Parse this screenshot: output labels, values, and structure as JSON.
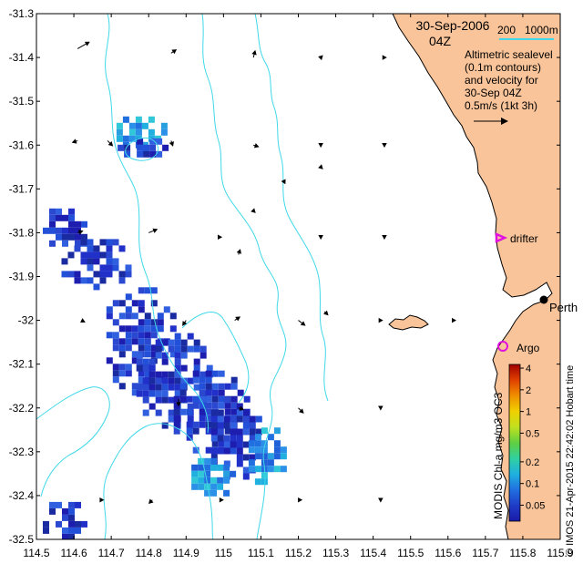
{
  "chart_data": {
    "type": "map",
    "title": "30-Sep-2006",
    "subtitle": "04Z",
    "xlim": [
      114.5,
      115.9
    ],
    "ylim": [
      -32.5,
      -31.3
    ],
    "x_ticks": [
      114.5,
      114.6,
      114.7,
      114.8,
      114.9,
      115,
      115.1,
      115.2,
      115.3,
      115.4,
      115.5,
      115.6,
      115.7,
      115.8,
      115.9
    ],
    "x_tick_labels": [
      "114.5",
      "114.6",
      "114.7",
      "114.8",
      "114.9",
      "115",
      "115.1",
      "115.2",
      "115.3",
      "115.4",
      "115.5",
      "115.6",
      "115.7",
      "115.8",
      "115.9"
    ],
    "y_ticks": [
      -31.3,
      -31.4,
      -31.5,
      -31.6,
      -31.7,
      -31.8,
      -31.9,
      -32,
      -32.1,
      -32.2,
      -32.3,
      -32.4,
      -32.5
    ],
    "y_tick_labels": [
      "-31.3",
      "-31.4",
      "-31.5",
      "-31.6",
      "-31.7",
      "-31.8",
      "-31.9",
      "-32",
      "-32.1",
      "-32.2",
      "-32.3",
      "-32.4",
      "-32.5"
    ],
    "bathymetry_legend": {
      "label_200": "200",
      "label_1000": "1000m"
    },
    "description_lines": [
      "Altimetric sealevel",
      "(0.1m contours)",
      "and velocity for",
      "30-Sep 04Z"
    ],
    "scale_label": "0.5m/s (1kt 3h)",
    "places": [
      {
        "name": "Perth",
        "lon": 115.86,
        "lat": -31.95
      },
      {
        "name": "drifter",
        "lon": 115.75,
        "lat": -31.81
      },
      {
        "name": "Argo",
        "lon": 115.74,
        "lat": -32.08
      }
    ],
    "colorbar": {
      "label": "MODIS Chl-a mg/m3 OC3",
      "tick_labels": [
        "4",
        "2",
        "1",
        "0.5",
        "0.2",
        "0.1",
        "0.05"
      ],
      "tick_values": [
        4,
        2,
        1,
        0.5,
        0.2,
        0.1,
        0.05
      ],
      "range": [
        0.03,
        4.5
      ],
      "colors": [
        "#1a1aa6",
        "#1f3cc8",
        "#2070e0",
        "#20b0e0",
        "#30d0a0",
        "#60d040",
        "#c0e020",
        "#f0d000",
        "#f09000",
        "#e04000",
        "#a00000"
      ]
    },
    "credit": "© IMOS 21-Apr-2015 22:42:02 Hobart time",
    "land_color": "#f9c49a",
    "contour_color": "#40d8e8",
    "chl_patches": [
      {
        "lon": 114.68,
        "lat": -31.52,
        "w": 0.17,
        "h": 0.09,
        "level": "mid"
      },
      {
        "lon": 114.7,
        "lat": -31.57,
        "w": 0.14,
        "h": 0.06,
        "level": "low"
      },
      {
        "lon": 114.5,
        "lat": -31.73,
        "w": 0.15,
        "h": 0.1,
        "level": "low"
      },
      {
        "lon": 114.55,
        "lat": -31.8,
        "w": 0.2,
        "h": 0.12,
        "level": "low"
      },
      {
        "lon": 114.67,
        "lat": -31.91,
        "w": 0.2,
        "h": 0.25,
        "level": "low"
      },
      {
        "lon": 114.75,
        "lat": -32.0,
        "w": 0.22,
        "h": 0.25,
        "level": "low"
      },
      {
        "lon": 114.85,
        "lat": -32.1,
        "w": 0.22,
        "h": 0.2,
        "level": "low"
      },
      {
        "lon": 114.95,
        "lat": -32.16,
        "w": 0.15,
        "h": 0.2,
        "level": "low"
      },
      {
        "lon": 115.05,
        "lat": -32.23,
        "w": 0.12,
        "h": 0.15,
        "level": "mid"
      },
      {
        "lon": 114.88,
        "lat": -32.3,
        "w": 0.15,
        "h": 0.1,
        "level": "mid"
      },
      {
        "lon": 114.5,
        "lat": -32.4,
        "w": 0.13,
        "h": 0.1,
        "level": "low"
      }
    ],
    "velocity_vectors": [
      {
        "lon": 114.61,
        "lat": -31.38,
        "dx": 0.7,
        "dy": -0.4
      },
      {
        "lon": 114.86,
        "lat": -31.39,
        "dx": 0.3,
        "dy": -0.2
      },
      {
        "lon": 115.08,
        "lat": -31.4,
        "dx": 0.1,
        "dy": -0.4
      },
      {
        "lon": 115.26,
        "lat": -31.4,
        "dx": 0.1,
        "dy": -0.1
      },
      {
        "lon": 115.43,
        "lat": -31.4,
        "dx": 0.1,
        "dy": 0.0
      },
      {
        "lon": 114.61,
        "lat": -31.59,
        "dx": -0.3,
        "dy": 0.1
      },
      {
        "lon": 114.69,
        "lat": -31.59,
        "dx": 0.3,
        "dy": 0.3
      },
      {
        "lon": 114.86,
        "lat": -31.59,
        "dx": 0.1,
        "dy": 0.3
      },
      {
        "lon": 115.08,
        "lat": -31.6,
        "dx": 0.3,
        "dy": 0.1
      },
      {
        "lon": 115.26,
        "lat": -31.6,
        "dx": 0.0,
        "dy": 0.1
      },
      {
        "lon": 115.43,
        "lat": -31.6,
        "dx": 0.0,
        "dy": 0.1
      },
      {
        "lon": 115.26,
        "lat": -31.65,
        "dx": 0.1,
        "dy": 0.1
      },
      {
        "lon": 115.16,
        "lat": -31.68,
        "dx": 0.1,
        "dy": 0.2
      },
      {
        "lon": 115.08,
        "lat": -31.75,
        "dx": 0.1,
        "dy": 0.1
      },
      {
        "lon": 114.99,
        "lat": -31.81,
        "dx": 0.1,
        "dy": 0.0
      },
      {
        "lon": 114.8,
        "lat": -31.8,
        "dx": 0.5,
        "dy": -0.2
      },
      {
        "lon": 114.61,
        "lat": -31.8,
        "dx": 0.3,
        "dy": -0.1
      },
      {
        "lon": 115.04,
        "lat": -31.85,
        "dx": 0.1,
        "dy": -0.3
      },
      {
        "lon": 115.26,
        "lat": -31.81,
        "dx": 0.0,
        "dy": 0.1
      },
      {
        "lon": 115.43,
        "lat": -31.81,
        "dx": 0.0,
        "dy": 0.1
      },
      {
        "lon": 114.62,
        "lat": -32.0,
        "dx": 0.2,
        "dy": 0.1
      },
      {
        "lon": 114.9,
        "lat": -32.0,
        "dx": -0.2,
        "dy": 0.3
      },
      {
        "lon": 115.03,
        "lat": -32.0,
        "dx": 0.3,
        "dy": -0.2
      },
      {
        "lon": 115.2,
        "lat": -32.0,
        "dx": 0.4,
        "dy": 0.3
      },
      {
        "lon": 115.27,
        "lat": -31.98,
        "dx": 0.2,
        "dy": 0.2
      },
      {
        "lon": 115.42,
        "lat": -32.0,
        "dx": 0.1,
        "dy": 0.0
      },
      {
        "lon": 115.62,
        "lat": -32.0,
        "dx": 0.0,
        "dy": 0.0
      },
      {
        "lon": 114.88,
        "lat": -32.18,
        "dx": 0.0,
        "dy": 0.4
      },
      {
        "lon": 115.04,
        "lat": -32.2,
        "dx": 0.3,
        "dy": 0.1
      },
      {
        "lon": 115.2,
        "lat": -32.2,
        "dx": 0.3,
        "dy": 0.3
      },
      {
        "lon": 115.42,
        "lat": -32.2,
        "dx": 0.0,
        "dy": 0.1
      },
      {
        "lon": 114.67,
        "lat": -32.41,
        "dx": 0.2,
        "dy": 0.0
      },
      {
        "lon": 114.81,
        "lat": -32.41,
        "dx": -0.2,
        "dy": 0.2
      },
      {
        "lon": 114.99,
        "lat": -32.41,
        "dx": 0.2,
        "dy": 0.0
      },
      {
        "lon": 115.2,
        "lat": -32.41,
        "dx": 0.2,
        "dy": 0.0
      },
      {
        "lon": 115.42,
        "lat": -32.41,
        "dx": 0.0,
        "dy": 0.1
      }
    ]
  }
}
